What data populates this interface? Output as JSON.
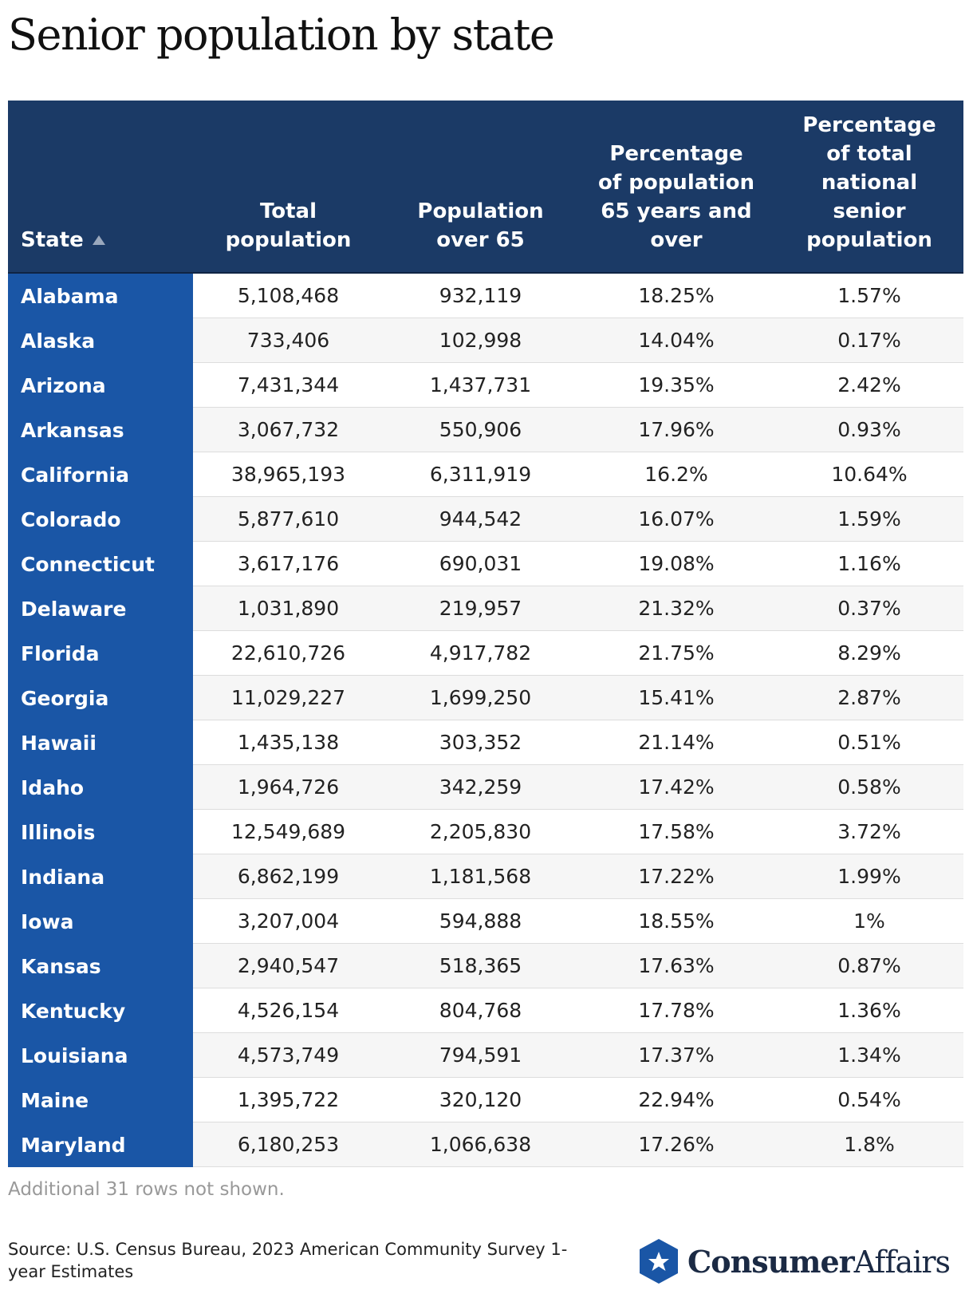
{
  "header": {
    "title": "Senior population by state"
  },
  "table": {
    "columns": [
      "State",
      "Total population",
      "Population over 65",
      "Percentage of population 65 years and over",
      "Percentage of total national senior population"
    ],
    "rows": [
      [
        "Alabama",
        "5,108,468",
        "932,119",
        "18.25%",
        "1.57%"
      ],
      [
        "Alaska",
        "733,406",
        "102,998",
        "14.04%",
        "0.17%"
      ],
      [
        "Arizona",
        "7,431,344",
        "1,437,731",
        "19.35%",
        "2.42%"
      ],
      [
        "Arkansas",
        "3,067,732",
        "550,906",
        "17.96%",
        "0.93%"
      ],
      [
        "California",
        "38,965,193",
        "6,311,919",
        "16.2%",
        "10.64%"
      ],
      [
        "Colorado",
        "5,877,610",
        "944,542",
        "16.07%",
        "1.59%"
      ],
      [
        "Connecticut",
        "3,617,176",
        "690,031",
        "19.08%",
        "1.16%"
      ],
      [
        "Delaware",
        "1,031,890",
        "219,957",
        "21.32%",
        "0.37%"
      ],
      [
        "Florida",
        "22,610,726",
        "4,917,782",
        "21.75%",
        "8.29%"
      ],
      [
        "Georgia",
        "11,029,227",
        "1,699,250",
        "15.41%",
        "2.87%"
      ],
      [
        "Hawaii",
        "1,435,138",
        "303,352",
        "21.14%",
        "0.51%"
      ],
      [
        "Idaho",
        "1,964,726",
        "342,259",
        "17.42%",
        "0.58%"
      ],
      [
        "Illinois",
        "12,549,689",
        "2,205,830",
        "17.58%",
        "3.72%"
      ],
      [
        "Indiana",
        "6,862,199",
        "1,181,568",
        "17.22%",
        "1.99%"
      ],
      [
        "Iowa",
        "3,207,004",
        "594,888",
        "18.55%",
        "1%"
      ],
      [
        "Kansas",
        "2,940,547",
        "518,365",
        "17.63%",
        "0.87%"
      ],
      [
        "Kentucky",
        "4,526,154",
        "804,768",
        "17.78%",
        "1.36%"
      ],
      [
        "Louisiana",
        "4,573,749",
        "794,591",
        "17.37%",
        "1.34%"
      ],
      [
        "Maine",
        "1,395,722",
        "320,120",
        "22.94%",
        "0.54%"
      ],
      [
        "Maryland",
        "6,180,253",
        "1,066,638",
        "17.26%",
        "1.8%"
      ]
    ]
  },
  "note": "Additional 31 rows not shown.",
  "footer": {
    "source": "Source: U.S. Census Bureau, 2023 American Community Survey 1-year Estimates",
    "logo_bold": "Consumer",
    "logo_light": "Affairs"
  }
}
